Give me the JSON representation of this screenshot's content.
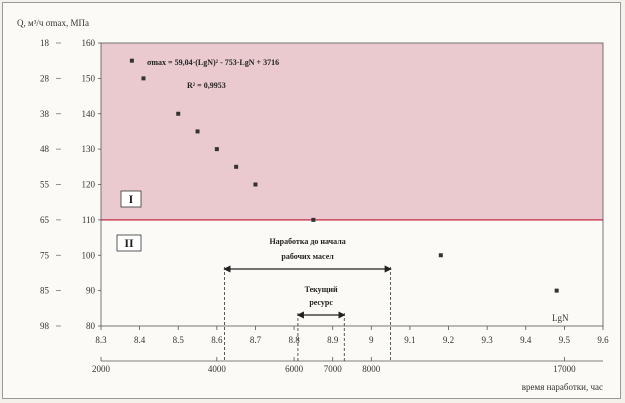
{
  "chart_data": {
    "type": "line",
    "y_axis_header": "Q, м³/ч σmax, МПа",
    "y_left_ticks": [
      "18",
      "28",
      "38",
      "48",
      "55",
      "65",
      "75",
      "85",
      "98"
    ],
    "y_right_ticks": [
      "160",
      "150",
      "140",
      "130",
      "120",
      "110",
      "100",
      "90",
      "80"
    ],
    "ylim": [
      80,
      160
    ],
    "x_ticks": [
      "8.3",
      "8.4",
      "8.5",
      "8.6",
      "8.7",
      "8.8",
      "8.9",
      "9",
      "9.1",
      "9.2",
      "9.3",
      "9.4",
      "9.5",
      "9.6"
    ],
    "xlim": [
      8.3,
      9.6
    ],
    "x_label": "LgN",
    "secondary_x_ticks": [
      {
        "x": 8.3,
        "label": "2000"
      },
      {
        "x": 8.6,
        "label": "4000"
      },
      {
        "x": 8.8,
        "label": "6000"
      },
      {
        "x": 8.9,
        "label": "7000"
      },
      {
        "x": 9.0,
        "label": "8000"
      },
      {
        "x": 9.5,
        "label": "17000"
      }
    ],
    "secondary_x_label": "время наработки, час",
    "equation_line1": "σmax = 59,04·(LgN)² - 753·LgN + 3716",
    "equation_line2": "R² = 0,9953",
    "zone_1_label": "I",
    "zone_2_label": "II",
    "zone_boundary_y": 110,
    "colors": {
      "zone_1": "#eacacf",
      "boundary": "#c8485c",
      "curve": "#1a1a1a"
    },
    "fit_coefficients": {
      "a": 59.04,
      "b": -753,
      "c": 3716
    },
    "series": [
      {
        "x": [
          8.38,
          8.41,
          8.5,
          8.55,
          8.6,
          8.65,
          8.7,
          8.85,
          9.18,
          9.48
        ],
        "y": [
          155,
          150,
          140,
          135,
          130,
          125,
          120,
          110,
          100,
          90
        ]
      }
    ],
    "annotations": [
      {
        "text_lines": [
          "Наработка до начала",
          "рабочих масел"
        ],
        "x_from": 8.62,
        "x_to": 9.05
      },
      {
        "text_lines": [
          "Текущий",
          "ресурс"
        ],
        "x_from": 8.81,
        "x_to": 8.93
      }
    ]
  }
}
